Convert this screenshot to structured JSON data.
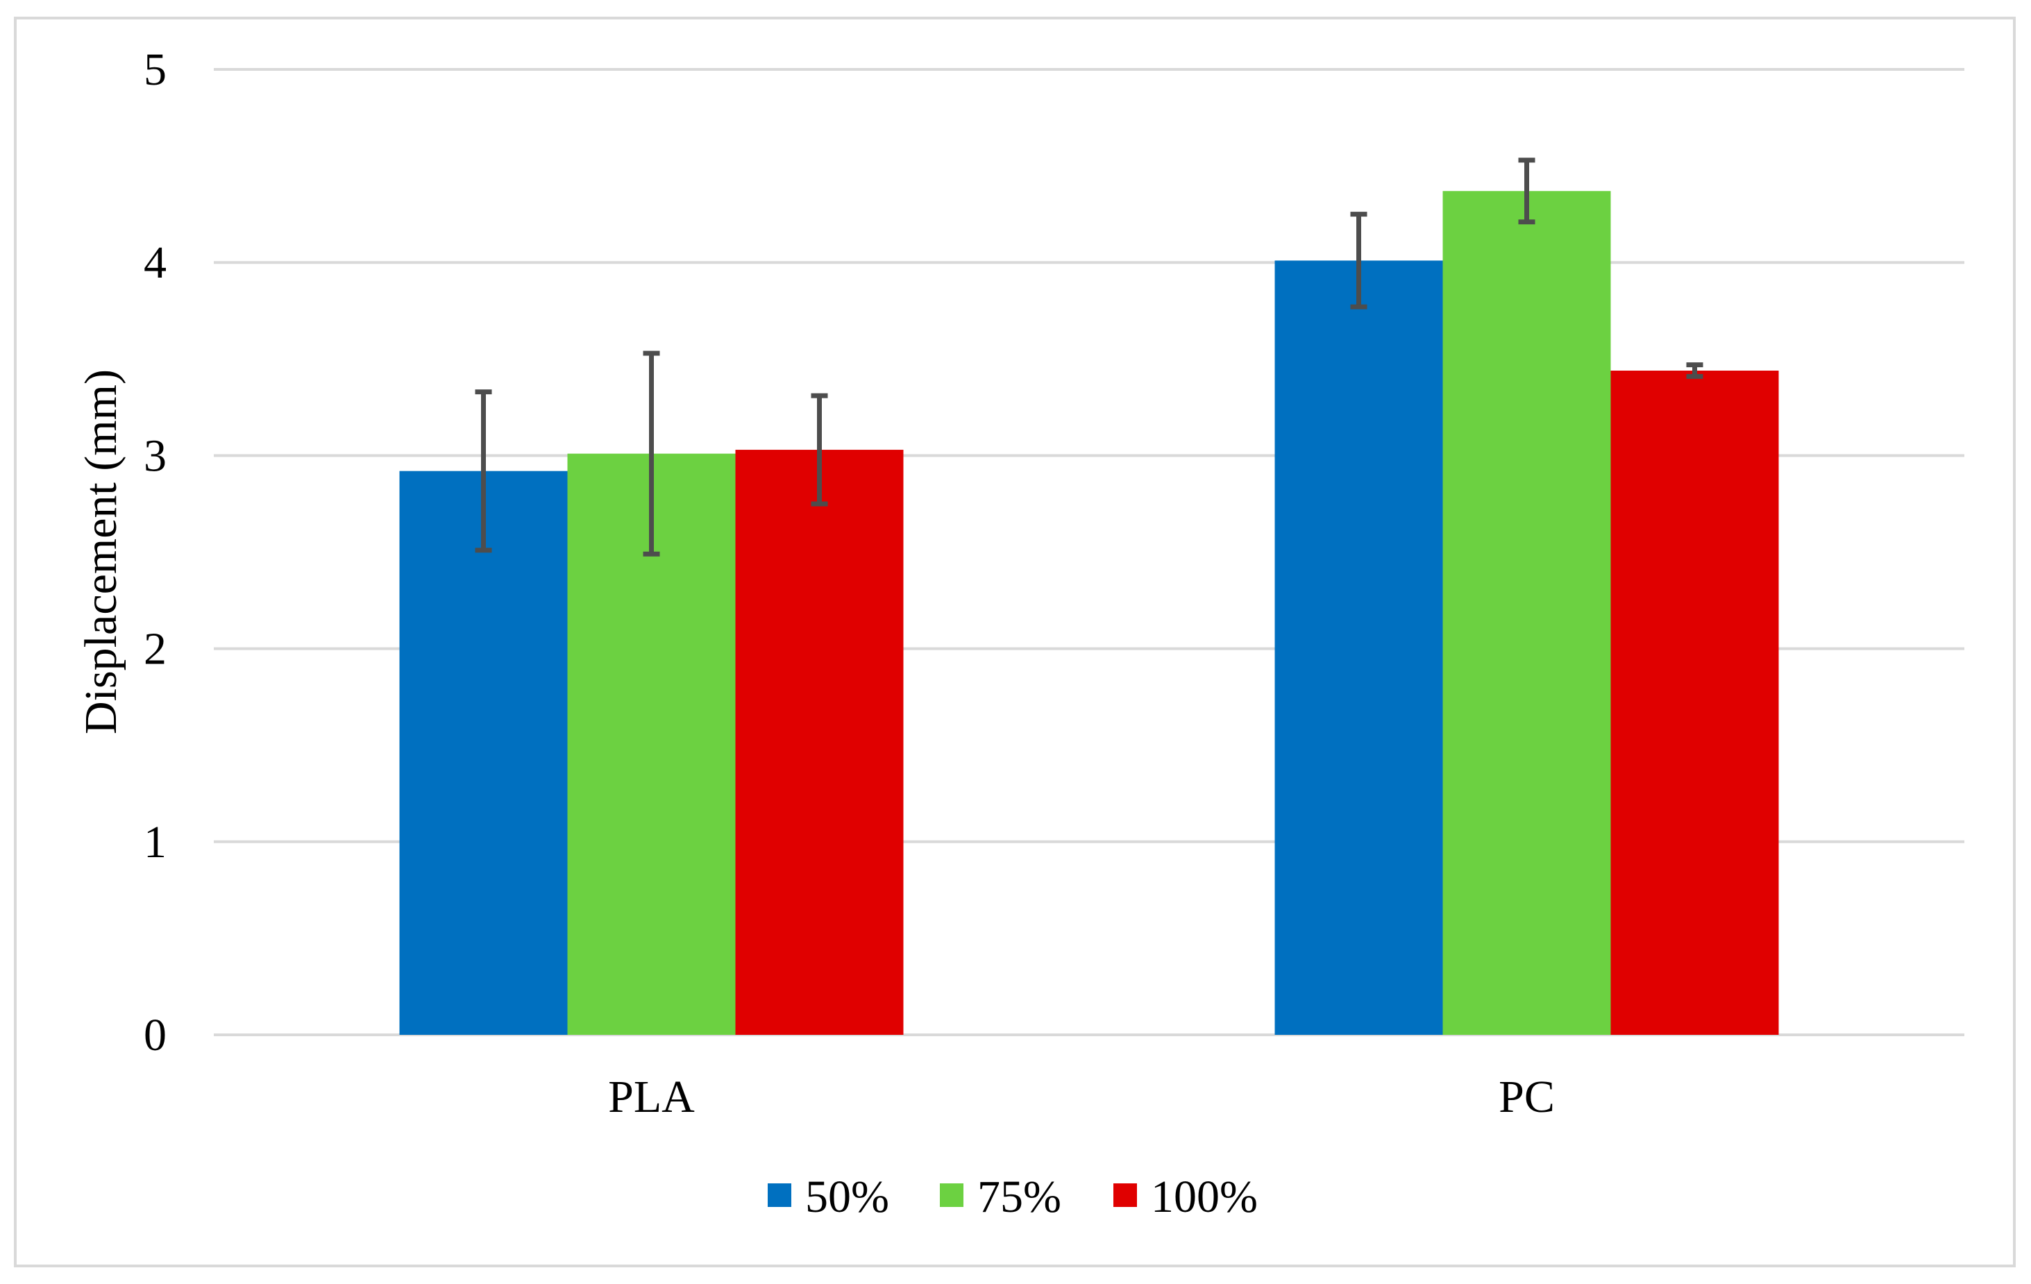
{
  "chart_data": {
    "type": "bar",
    "title": "",
    "xlabel": "",
    "ylabel": "Displacement (mm)",
    "ylim": [
      0,
      5
    ],
    "yticks": [
      0,
      1,
      2,
      3,
      4,
      5
    ],
    "categories": [
      "PLA",
      "PC"
    ],
    "series": [
      {
        "name": "50%",
        "color": "#0070C0",
        "values": [
          2.92,
          4.01
        ],
        "errors": [
          0.41,
          0.24
        ]
      },
      {
        "name": "75%",
        "color": "#6CD141",
        "values": [
          3.01,
          4.37
        ],
        "errors": [
          0.52,
          0.16
        ]
      },
      {
        "name": "100%",
        "color": "#E00000",
        "values": [
          3.03,
          3.44
        ],
        "errors": [
          0.28,
          0.03
        ]
      }
    ],
    "grid": true,
    "legend_position": "bottom-center",
    "error_bar_color": "#4D4D4D"
  }
}
